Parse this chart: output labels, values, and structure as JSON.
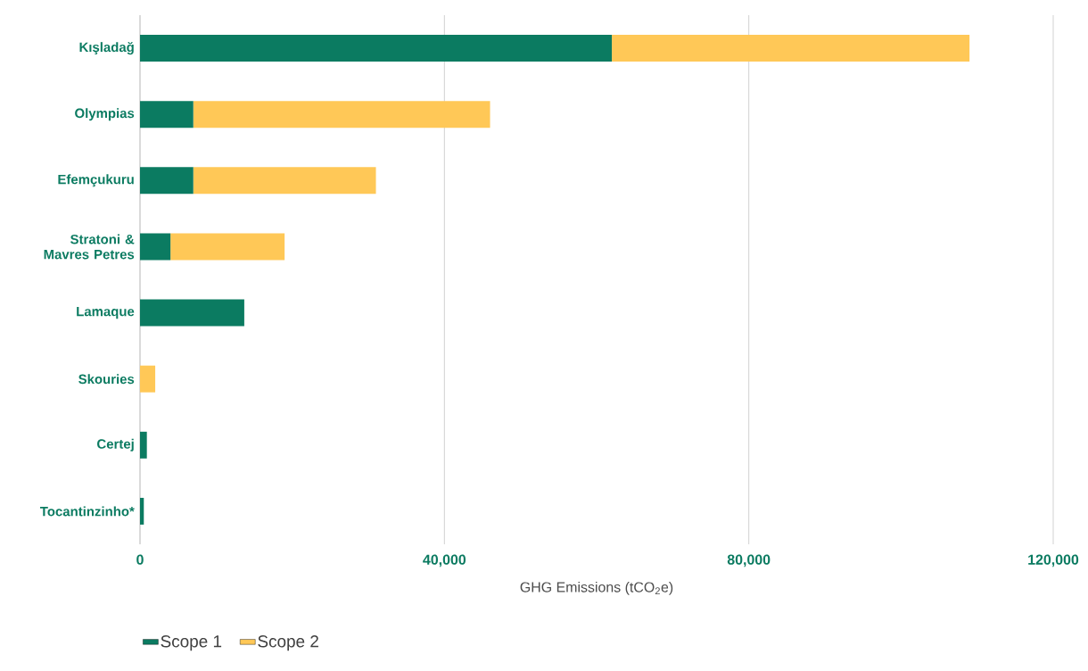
{
  "chart_data": {
    "type": "bar",
    "orientation": "horizontal",
    "stacked": true,
    "categories": [
      "Kışladağ",
      "Olympias",
      "Efemçukuru",
      "Stratoni & Mavres Petres",
      "Lamaque",
      "Skouries",
      "Certej",
      "Tocantinzinho*"
    ],
    "series": [
      {
        "name": "Scope 1",
        "color": "#0b7b61",
        "values": [
          62000,
          7000,
          7000,
          4000,
          13700,
          0,
          900,
          500
        ]
      },
      {
        "name": "Scope 2",
        "color": "#ffc857",
        "values": [
          47000,
          39000,
          24000,
          15000,
          0,
          2000,
          0,
          0
        ]
      }
    ],
    "xlim": [
      0,
      120000
    ],
    "xticks": [
      {
        "value": 0,
        "label": "0"
      },
      {
        "value": 40000,
        "label": "40,000"
      },
      {
        "value": 80000,
        "label": "80,000"
      },
      {
        "value": 120000,
        "label": "120,000"
      }
    ],
    "xlabel": "GHG Emissions (tCO$_{2}$e)",
    "grid": "x",
    "legend": "bottom left"
  }
}
